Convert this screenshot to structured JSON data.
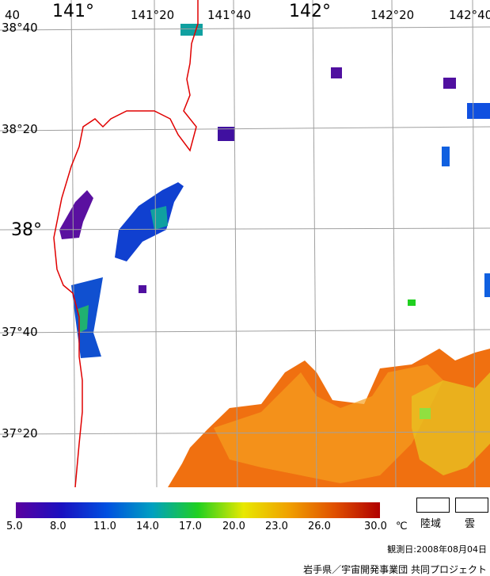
{
  "map": {
    "lat_labels": [
      "38°40",
      "38°20",
      "38°",
      "37°40",
      "37°20"
    ],
    "lon_labels": [
      "40",
      "141°",
      "141°20",
      "141°40",
      "142°",
      "142°20",
      "142°40"
    ]
  },
  "legend": {
    "scale_ticks": [
      "5.0",
      "8.0",
      "11.0",
      "14.0",
      "17.0",
      "20.0",
      "23.0",
      "26.0",
      "30.0"
    ],
    "unit": "℃",
    "land_label": "陸域",
    "cloud_label": "雲",
    "colors": [
      "#5a00a0",
      "#1a10c0",
      "#0050e0",
      "#00a0c0",
      "#20d020",
      "#e8e800",
      "#f0a000",
      "#e05000",
      "#b00000"
    ]
  },
  "footer": {
    "observation_date": "観測日:2008年08月04日",
    "credit": "岩手県／宇宙開発事業団 共同プロジェクト"
  }
}
